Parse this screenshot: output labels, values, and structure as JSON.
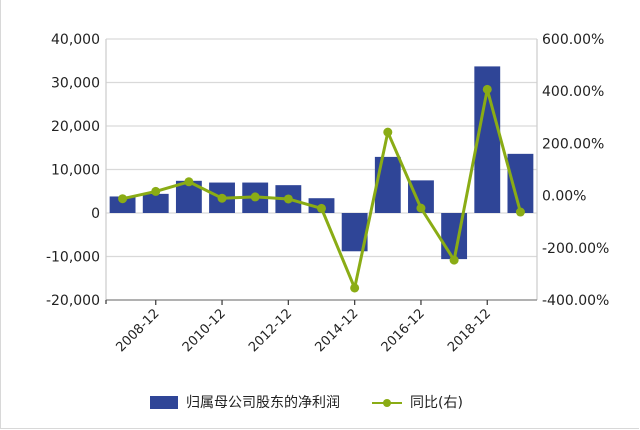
{
  "chart_data": {
    "type": "bar+line",
    "title": "",
    "categories": [
      "2007-12",
      "2008-12",
      "2009-12",
      "2010-12",
      "2011-12",
      "2012-12",
      "2013-12",
      "2014-12",
      "2015-12",
      "2016-12",
      "2017-12",
      "2018-12",
      "2019-12"
    ],
    "x_tick_labels": [
      "2008-12",
      "2010-12",
      "2012-12",
      "2014-12",
      "2016-12",
      "2018-12"
    ],
    "series": [
      {
        "name": "归属母公司股东的净利润",
        "type": "bar",
        "axis": "left",
        "color": "#2f4597",
        "values": [
          3800,
          4400,
          7400,
          7000,
          7000,
          6400,
          3400,
          -8800,
          12900,
          7500,
          -10600,
          33700,
          13600
        ]
      },
      {
        "name": "同比(右)",
        "type": "line",
        "axis": "right",
        "color": "#8aac15",
        "unit": "%",
        "values": [
          -12,
          16,
          53,
          -10,
          -5,
          -13,
          -49,
          -354,
          243,
          -48,
          -247,
          407,
          -63
        ]
      }
    ],
    "y_left": {
      "min": -20000,
      "max": 40000,
      "step": 10000,
      "tick_labels": [
        "40,000",
        "30,000",
        "20,000",
        "10,000",
        "0",
        "-10,000",
        "-20,000"
      ]
    },
    "y_right": {
      "min": -400,
      "max": 600,
      "step": 200,
      "tick_labels": [
        "600.00%",
        "400.00%",
        "200.00%",
        "0.00%",
        "-200.00%",
        "-400.00%"
      ]
    },
    "grid": true,
    "legend_position": "bottom"
  },
  "legend": {
    "bar_label": "归属母公司股东的净利润",
    "line_label": "同比(右)"
  }
}
